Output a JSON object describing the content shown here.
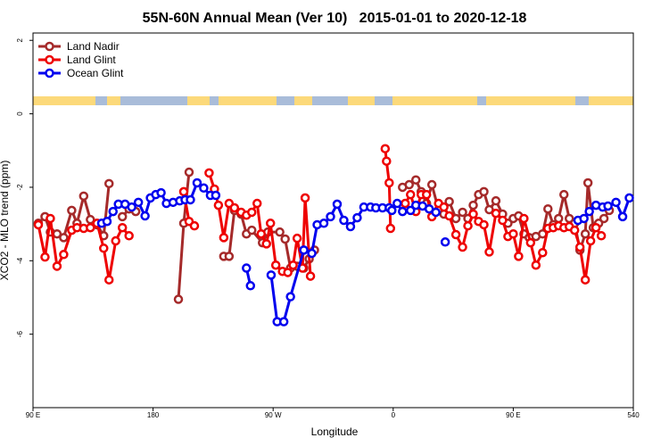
{
  "chart_data": {
    "type": "line",
    "title": "55N-60N Annual Mean (Ver 10)   2015-01-01 to 2020-12-18",
    "x_label": "Longitude",
    "y_label": "XCO2 - MLO trend (ppm)",
    "xlim": [
      90,
      540
    ],
    "ylim": [
      -8,
      2.2
    ],
    "xticks": [
      {
        "value": 90,
        "label": "90 E"
      },
      180,
      {
        "value": 270,
        "label": "90 W"
      },
      {
        "value": 360,
        "label": "0"
      },
      {
        "value": 450,
        "label": "90 E"
      },
      540
    ],
    "yticks": [
      2,
      0,
      -2,
      -4,
      -6
    ],
    "legend": "top-left",
    "series": [
      {
        "name": "Land Nadir",
        "color": "#a52a2a",
        "x": [
          94,
          99,
          103,
          108,
          113,
          119,
          123,
          128,
          133,
          138,
          143,
          147,
          152,
          157,
          162,
          167,
          180,
          199,
          203,
          207,
          225,
          233,
          237,
          241,
          246,
          250,
          254,
          262,
          266,
          275,
          279,
          283,
          288,
          293,
          297,
          301,
          330,
          367,
          372,
          377,
          381,
          385,
          389,
          394,
          398,
          402,
          407,
          412,
          416,
          420,
          424,
          428,
          432,
          437,
          442,
          446,
          450,
          454,
          458,
          462,
          467,
          472,
          476,
          480,
          484,
          488,
          492,
          496,
          500,
          504,
          506,
          510,
          514,
          518,
          522
        ],
        "values": [
          -2.98,
          -2.8,
          -3.22,
          -3.27,
          -3.37,
          -2.63,
          -2.98,
          -2.24,
          -2.88,
          -3.02,
          -3.32,
          -1.9,
          null,
          -2.8,
          -2.59,
          -2.66,
          null,
          -5.05,
          -2.98,
          -1.59,
          null,
          -3.88,
          -3.88,
          -2.63,
          -2.73,
          -3.27,
          -3.17,
          -3.51,
          -3.22,
          -3.22,
          -3.41,
          -4.2,
          -4.15,
          -4.2,
          -3.95,
          -3.71,
          null,
          -2.0,
          -1.93,
          -1.8,
          -2.12,
          -2.44,
          -1.93,
          -2.61,
          -2.73,
          -2.39,
          -2.85,
          -2.68,
          -2.85,
          -2.49,
          -2.2,
          -2.12,
          -2.61,
          -2.37,
          -2.73,
          -2.98,
          -2.85,
          -2.78,
          -3.27,
          -3.37,
          -3.34,
          -3.27,
          -2.59,
          -3.02,
          -2.85,
          -2.2,
          -2.85,
          -2.98,
          -3.71,
          -3.27,
          -1.88,
          -3.1,
          -2.98,
          -2.85,
          -2.63
        ]
      },
      {
        "name": "Land Glint",
        "color": "#ee0000",
        "x": [
          94,
          99,
          103,
          108,
          113,
          119,
          123,
          128,
          133,
          138,
          143,
          147,
          152,
          157,
          162,
          180,
          203,
          207,
          211,
          216,
          222,
          226,
          229,
          233,
          237,
          241,
          246,
          250,
          254,
          258,
          261,
          265,
          268,
          272,
          277,
          281,
          285,
          288,
          292,
          294,
          298,
          320,
          354,
          355,
          357,
          358,
          362,
          369,
          373,
          377,
          381,
          385,
          389,
          394,
          398,
          402,
          407,
          412,
          416,
          420,
          424,
          428,
          432,
          437,
          442,
          446,
          450,
          454,
          458,
          463,
          467,
          472,
          476,
          480,
          484,
          488,
          492,
          496,
          500,
          504,
          508,
          512,
          516
        ],
        "values": [
          -3.02,
          -3.9,
          -2.85,
          -4.15,
          -3.83,
          -3.17,
          -3.1,
          -3.12,
          -3.1,
          -2.98,
          -3.66,
          -4.52,
          -3.46,
          -3.1,
          -3.32,
          null,
          -2.12,
          -2.93,
          -3.05,
          null,
          -1.61,
          -2.05,
          -2.49,
          -3.37,
          -2.44,
          -2.56,
          -2.68,
          -2.76,
          -2.68,
          -2.44,
          -3.27,
          -3.54,
          -2.98,
          -4.12,
          -4.29,
          -4.32,
          -4.12,
          -3.39,
          -4.2,
          -2.29,
          -4.42,
          null,
          -0.95,
          -1.29,
          -1.88,
          -3.12,
          null,
          -2.44,
          -2.2,
          -2.66,
          -2.2,
          -2.2,
          -2.8,
          -2.44,
          -2.54,
          -2.78,
          -3.29,
          -3.63,
          -3.05,
          -2.73,
          -2.93,
          -3.02,
          -3.76,
          -2.71,
          -2.9,
          -3.34,
          -3.27,
          -3.88,
          -2.85,
          -3.51,
          -4.12,
          -3.78,
          -3.12,
          -3.1,
          -3.05,
          -3.1,
          -3.07,
          -3.17,
          -3.63,
          -4.52,
          -3.46,
          -3.1,
          -3.32
        ]
      },
      {
        "name": "Ocean Glint",
        "color": "#0000ee",
        "x": [
          141.5,
          145.5,
          150,
          154,
          159,
          164,
          169,
          174,
          178,
          182,
          186,
          190,
          195,
          200,
          204,
          208,
          213,
          218,
          223,
          227,
          240,
          250,
          253,
          260,
          268.5,
          273,
          278,
          283,
          293,
          299,
          303,
          308,
          313,
          318,
          323,
          328,
          333,
          338,
          343,
          347,
          352,
          357,
          359,
          363,
          367,
          373,
          377,
          382,
          387,
          392,
          395,
          399,
          450,
          498.5,
          503,
          507,
          512,
          517,
          521,
          527,
          532,
          537
        ],
        "values": [
          -2.98,
          -2.93,
          -2.66,
          -2.46,
          -2.46,
          -2.54,
          -2.41,
          -2.78,
          -2.29,
          -2.2,
          -2.15,
          -2.44,
          -2.41,
          -2.37,
          -2.34,
          -2.34,
          -1.88,
          -2.02,
          -2.22,
          -2.22,
          null,
          -4.2,
          -4.68,
          null,
          -4.39,
          -5.66,
          -5.66,
          -4.98,
          -3.71,
          -3.8,
          -3.02,
          -2.98,
          -2.8,
          -2.46,
          -2.9,
          -3.07,
          -2.83,
          -2.54,
          -2.54,
          -2.56,
          -2.56,
          -2.56,
          -2.63,
          -2.44,
          -2.66,
          -2.63,
          -2.49,
          -2.51,
          -2.59,
          -2.68,
          null,
          -3.49,
          null,
          -2.9,
          -2.85,
          -2.66,
          -2.49,
          -2.54,
          -2.51,
          -2.41,
          -2.8,
          -2.29
        ]
      }
    ]
  }
}
